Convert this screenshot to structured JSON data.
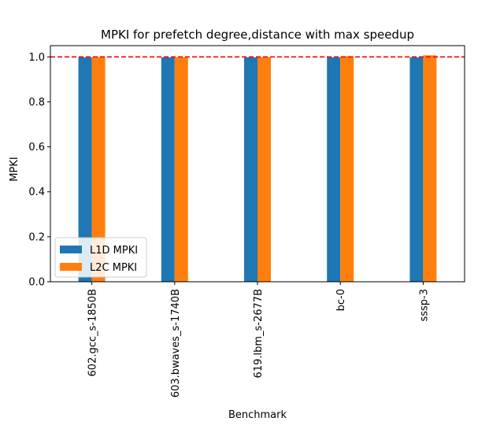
{
  "chart_data": {
    "type": "bar",
    "title": "MPKI for prefetch degree,distance with max speedup",
    "xlabel": "Benchmark",
    "ylabel": "MPKI",
    "categories": [
      "602.gcc_s-1850B",
      "603.bwaves_s-1740B",
      "619.lbm_s-2677B",
      "bc-0",
      "sssp-3"
    ],
    "series": [
      {
        "name": "L1D MPKI",
        "color": "#1f77b4",
        "values": [
          0.998,
          0.998,
          0.998,
          0.998,
          0.998
        ]
      },
      {
        "name": "L2C MPKI",
        "color": "#ff7f0e",
        "values": [
          0.999,
          0.999,
          0.999,
          1.003,
          1.007
        ]
      }
    ],
    "ylim": [
      0,
      1.05
    ],
    "yticks": [
      0.0,
      0.2,
      0.4,
      0.6,
      0.8,
      1.0
    ],
    "ytick_labels": [
      "0.0",
      "0.2",
      "0.4",
      "0.6",
      "0.8",
      "1.0"
    ],
    "reference_line": {
      "y": 1.0,
      "color": "#ff0000",
      "style": "dashed"
    },
    "legend_position": "lower-left",
    "grid": false
  }
}
